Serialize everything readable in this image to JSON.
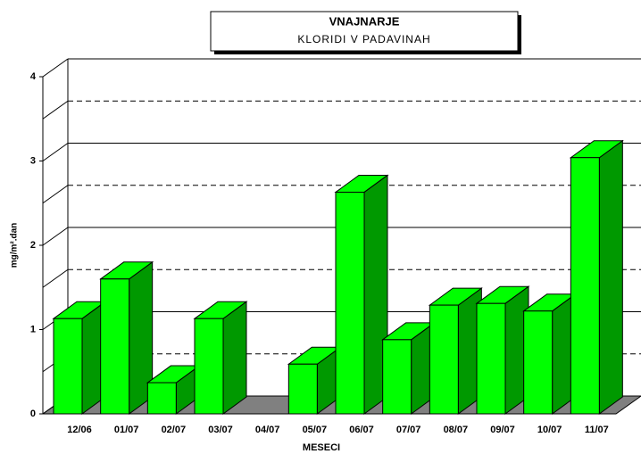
{
  "chart_data": {
    "type": "bar3d",
    "title": "VNAJNARJE",
    "subtitle": "KLORIDI V PADAVINAH",
    "x_label": "MESECI",
    "y_label": "mg/m².dan",
    "categories": [
      "12/06",
      "01/07",
      "02/07",
      "03/07",
      "04/07",
      "05/07",
      "06/07",
      "07/07",
      "08/07",
      "09/07",
      "10/07",
      "11/07"
    ],
    "values": [
      1.13,
      1.6,
      0.37,
      1.13,
      null,
      0.59,
      2.63,
      0.88,
      1.29,
      1.31,
      1.22,
      3.04
    ],
    "color": "#00ff00",
    "side_color": "#009900",
    "floor_color": "#808080",
    "ylim": [
      0,
      4
    ],
    "yticks": [
      0,
      1,
      2,
      3,
      4
    ],
    "minor_yticks": [
      0.5,
      1.5,
      2.5,
      3.5
    ],
    "grid": true
  }
}
